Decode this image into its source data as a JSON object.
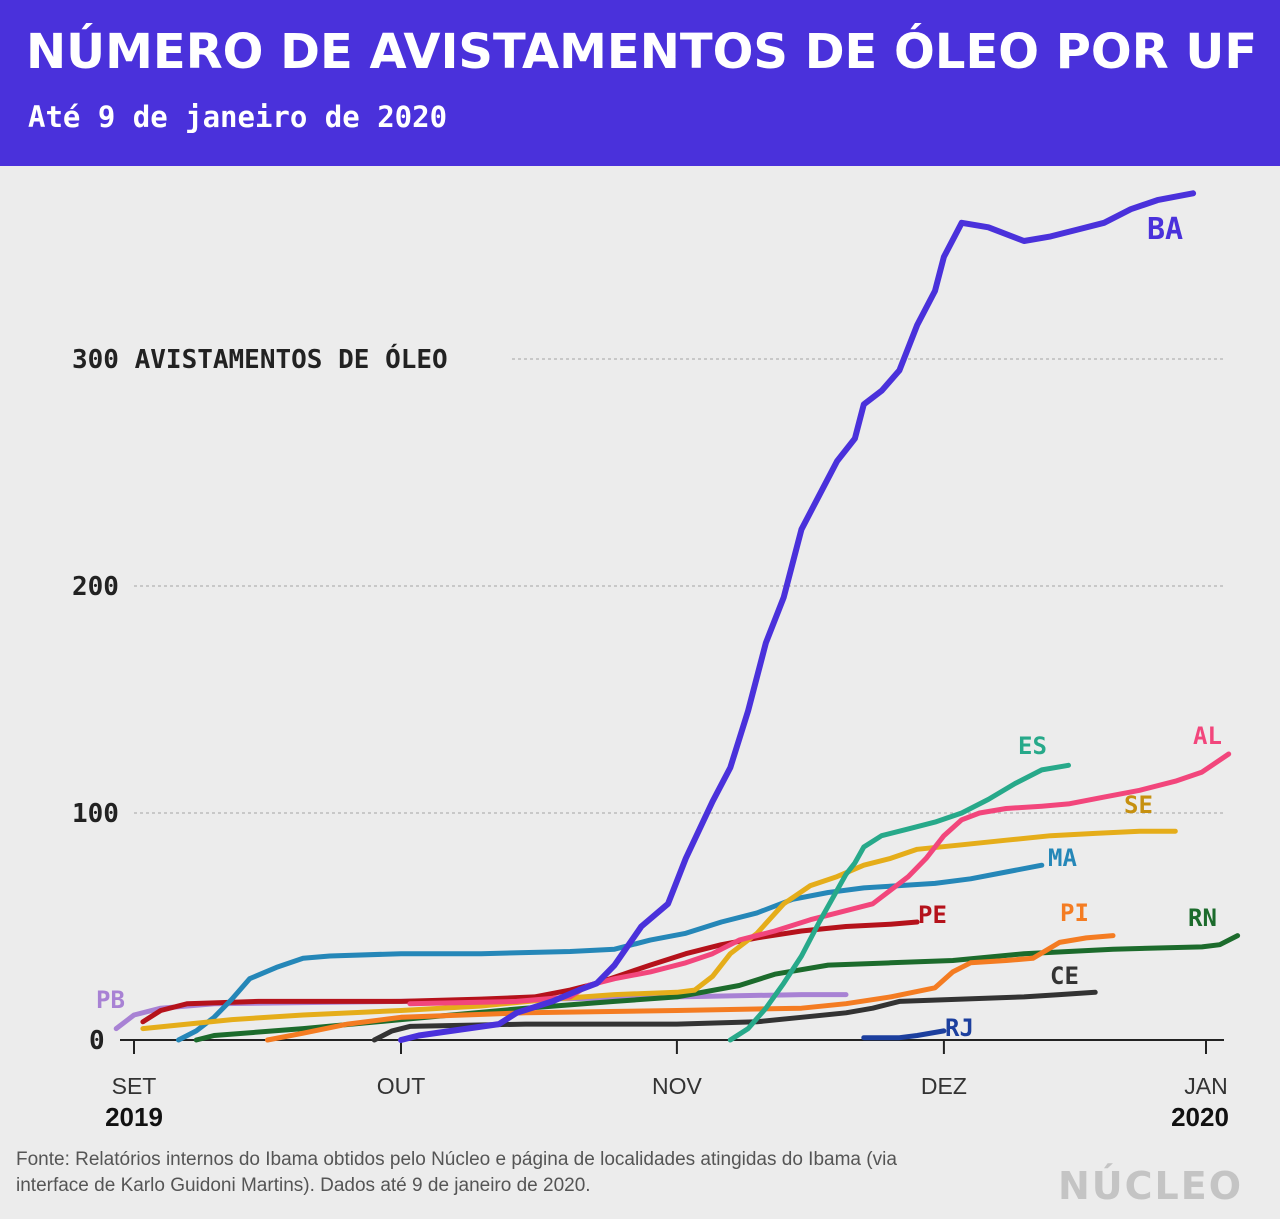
{
  "header": {
    "title": "NÚMERO DE AVISTAMENTOS DE ÓLEO POR UF",
    "subtitle": "Até 9 de janeiro de 2020"
  },
  "chart_data": {
    "type": "line",
    "title": "NÚMERO DE AVISTAMENTOS DE ÓLEO POR UF",
    "subtitle": "Até 9 de janeiro de 2020",
    "ylim": [
      0,
      380
    ],
    "xlim": [
      "2019-08-30",
      "2020-01-09"
    ],
    "grid": "horizontal dotted",
    "y_ticks": [
      {
        "value": 0,
        "label": "0"
      },
      {
        "value": 100,
        "label": "100"
      },
      {
        "value": 200,
        "label": "200"
      },
      {
        "value": 300,
        "label": "300 AVISTAMENTOS DE ÓLEO"
      }
    ],
    "x_ticks": [
      {
        "date": "2019-09-01",
        "label": "SET",
        "year": "2019"
      },
      {
        "date": "2019-10-01",
        "label": "OUT",
        "year": ""
      },
      {
        "date": "2019-11-01",
        "label": "NOV",
        "year": ""
      },
      {
        "date": "2019-12-01",
        "label": "DEZ",
        "year": ""
      },
      {
        "date": "2020-01-01",
        "label": "JAN",
        "year": "2020"
      }
    ],
    "series": [
      {
        "name": "BA",
        "color": "#4a31db",
        "points": [
          [
            "2019-10-01",
            0
          ],
          [
            "2019-10-03",
            2
          ],
          [
            "2019-10-12",
            7
          ],
          [
            "2019-10-14",
            12
          ],
          [
            "2019-10-18",
            17
          ],
          [
            "2019-10-21",
            22
          ],
          [
            "2019-10-23",
            25
          ],
          [
            "2019-10-25",
            33
          ],
          [
            "2019-10-28",
            50
          ],
          [
            "2019-10-31",
            60
          ],
          [
            "2019-11-02",
            80
          ],
          [
            "2019-11-05",
            105
          ],
          [
            "2019-11-07",
            120
          ],
          [
            "2019-11-09",
            145
          ],
          [
            "2019-11-11",
            175
          ],
          [
            "2019-11-13",
            195
          ],
          [
            "2019-11-15",
            225
          ],
          [
            "2019-11-17",
            240
          ],
          [
            "2019-11-19",
            255
          ],
          [
            "2019-11-21",
            265
          ],
          [
            "2019-11-22",
            280
          ],
          [
            "2019-11-24",
            286
          ],
          [
            "2019-11-26",
            295
          ],
          [
            "2019-11-28",
            315
          ],
          [
            "2019-11-30",
            330
          ],
          [
            "2019-12-01",
            345
          ],
          [
            "2019-12-03",
            360
          ],
          [
            "2019-12-06",
            358
          ],
          [
            "2019-12-10",
            352
          ],
          [
            "2019-12-13",
            354
          ],
          [
            "2019-12-16",
            357
          ],
          [
            "2019-12-19",
            360
          ],
          [
            "2019-12-22",
            366
          ],
          [
            "2019-12-25",
            370
          ],
          [
            "2019-12-29",
            373
          ]
        ]
      },
      {
        "name": "AL",
        "color": "#f2467c",
        "points": [
          [
            "2019-10-02",
            16
          ],
          [
            "2019-10-14",
            17
          ],
          [
            "2019-10-20",
            19
          ],
          [
            "2019-10-22",
            24
          ],
          [
            "2019-10-25",
            27
          ],
          [
            "2019-10-29",
            30
          ],
          [
            "2019-11-02",
            34
          ],
          [
            "2019-11-05",
            38
          ],
          [
            "2019-11-08",
            44
          ],
          [
            "2019-11-12",
            48
          ],
          [
            "2019-11-16",
            53
          ],
          [
            "2019-11-19",
            56
          ],
          [
            "2019-11-23",
            60
          ],
          [
            "2019-11-27",
            72
          ],
          [
            "2019-11-29",
            80
          ],
          [
            "2019-12-01",
            90
          ],
          [
            "2019-12-03",
            97
          ],
          [
            "2019-12-05",
            100
          ],
          [
            "2019-12-08",
            102
          ],
          [
            "2019-12-12",
            103
          ],
          [
            "2019-12-15",
            104
          ],
          [
            "2019-12-19",
            107
          ],
          [
            "2019-12-23",
            110
          ],
          [
            "2019-12-27",
            114
          ],
          [
            "2019-12-30",
            118
          ],
          [
            "2020-01-02",
            126
          ]
        ]
      },
      {
        "name": "ES",
        "color": "#27a98a",
        "points": [
          [
            "2019-11-07",
            0
          ],
          [
            "2019-11-09",
            5
          ],
          [
            "2019-11-11",
            14
          ],
          [
            "2019-11-13",
            25
          ],
          [
            "2019-11-15",
            37
          ],
          [
            "2019-11-17",
            52
          ],
          [
            "2019-11-19",
            66
          ],
          [
            "2019-11-20",
            73
          ],
          [
            "2019-11-21",
            78
          ],
          [
            "2019-11-22",
            85
          ],
          [
            "2019-11-24",
            90
          ],
          [
            "2019-11-27",
            93
          ],
          [
            "2019-11-30",
            96
          ],
          [
            "2019-12-03",
            100
          ],
          [
            "2019-12-06",
            106
          ],
          [
            "2019-12-09",
            113
          ],
          [
            "2019-12-12",
            119
          ],
          [
            "2019-12-15",
            121
          ]
        ]
      },
      {
        "name": "SE",
        "color": "#e5ad1a",
        "points": [
          [
            "2019-09-02",
            5
          ],
          [
            "2019-09-12",
            9
          ],
          [
            "2019-09-20",
            11
          ],
          [
            "2019-10-01",
            13
          ],
          [
            "2019-10-10",
            15
          ],
          [
            "2019-10-18",
            18
          ],
          [
            "2019-10-25",
            20
          ],
          [
            "2019-11-01",
            21
          ],
          [
            "2019-11-03",
            22
          ],
          [
            "2019-11-05",
            28
          ],
          [
            "2019-11-07",
            38
          ],
          [
            "2019-11-10",
            47
          ],
          [
            "2019-11-13",
            60
          ],
          [
            "2019-11-16",
            68
          ],
          [
            "2019-11-19",
            72
          ],
          [
            "2019-11-22",
            77
          ],
          [
            "2019-11-25",
            80
          ],
          [
            "2019-11-28",
            84
          ],
          [
            "2019-12-03",
            86
          ],
          [
            "2019-12-08",
            88
          ],
          [
            "2019-12-13",
            90
          ],
          [
            "2019-12-18",
            91
          ],
          [
            "2019-12-23",
            92
          ],
          [
            "2019-12-27",
            92
          ]
        ]
      },
      {
        "name": "MA",
        "color": "#2587b8",
        "points": [
          [
            "2019-09-06",
            0
          ],
          [
            "2019-09-08",
            4
          ],
          [
            "2019-09-10",
            10
          ],
          [
            "2019-09-12",
            18
          ],
          [
            "2019-09-14",
            27
          ],
          [
            "2019-09-17",
            32
          ],
          [
            "2019-09-20",
            36
          ],
          [
            "2019-09-23",
            37
          ],
          [
            "2019-10-01",
            38
          ],
          [
            "2019-10-10",
            38
          ],
          [
            "2019-10-20",
            39
          ],
          [
            "2019-10-25",
            40
          ],
          [
            "2019-10-29",
            44
          ],
          [
            "2019-11-02",
            47
          ],
          [
            "2019-11-06",
            52
          ],
          [
            "2019-11-10",
            56
          ],
          [
            "2019-11-14",
            62
          ],
          [
            "2019-11-18",
            65
          ],
          [
            "2019-11-22",
            67
          ],
          [
            "2019-11-26",
            68
          ],
          [
            "2019-11-30",
            69
          ],
          [
            "2019-12-04",
            71
          ],
          [
            "2019-12-08",
            74
          ],
          [
            "2019-12-12",
            77
          ]
        ]
      },
      {
        "name": "PE",
        "color": "#b5121b",
        "points": [
          [
            "2019-09-02",
            8
          ],
          [
            "2019-09-04",
            13
          ],
          [
            "2019-09-07",
            16
          ],
          [
            "2019-09-15",
            17
          ],
          [
            "2019-10-01",
            17
          ],
          [
            "2019-10-10",
            18
          ],
          [
            "2019-10-16",
            19
          ],
          [
            "2019-10-20",
            22
          ],
          [
            "2019-10-23",
            25
          ],
          [
            "2019-10-26",
            29
          ],
          [
            "2019-10-29",
            33
          ],
          [
            "2019-11-02",
            38
          ],
          [
            "2019-11-06",
            42
          ],
          [
            "2019-11-10",
            45
          ],
          [
            "2019-11-15",
            48
          ],
          [
            "2019-11-20",
            50
          ],
          [
            "2019-11-25",
            51
          ],
          [
            "2019-11-28",
            52
          ]
        ]
      },
      {
        "name": "PI",
        "color": "#f47c22",
        "points": [
          [
            "2019-09-16",
            0
          ],
          [
            "2019-09-20",
            3
          ],
          [
            "2019-09-25",
            7
          ],
          [
            "2019-10-01",
            10
          ],
          [
            "2019-10-15",
            12
          ],
          [
            "2019-11-01",
            13
          ],
          [
            "2019-11-15",
            14
          ],
          [
            "2019-11-20",
            16
          ],
          [
            "2019-11-25",
            19
          ],
          [
            "2019-11-30",
            23
          ],
          [
            "2019-12-02",
            30
          ],
          [
            "2019-12-04",
            34
          ],
          [
            "2019-12-08",
            35
          ],
          [
            "2019-12-11",
            36
          ],
          [
            "2019-12-14",
            43
          ],
          [
            "2019-12-17",
            45
          ],
          [
            "2019-12-20",
            46
          ]
        ]
      },
      {
        "name": "RN",
        "color": "#1c6b2c",
        "points": [
          [
            "2019-09-08",
            0
          ],
          [
            "2019-09-10",
            2
          ],
          [
            "2019-09-20",
            5
          ],
          [
            "2019-10-01",
            9
          ],
          [
            "2019-10-15",
            14
          ],
          [
            "2019-10-25",
            17
          ],
          [
            "2019-11-01",
            19
          ],
          [
            "2019-11-08",
            24
          ],
          [
            "2019-11-12",
            29
          ],
          [
            "2019-11-18",
            33
          ],
          [
            "2019-11-25",
            34
          ],
          [
            "2019-12-02",
            35
          ],
          [
            "2019-12-10",
            38
          ],
          [
            "2019-12-20",
            40
          ],
          [
            "2019-12-30",
            41
          ],
          [
            "2020-01-01",
            42
          ],
          [
            "2020-01-03",
            46
          ]
        ]
      },
      {
        "name": "CE",
        "color": "#333333",
        "points": [
          [
            "2019-09-28",
            0
          ],
          [
            "2019-09-30",
            4
          ],
          [
            "2019-10-02",
            6
          ],
          [
            "2019-10-15",
            7
          ],
          [
            "2019-11-01",
            7
          ],
          [
            "2019-11-10",
            8
          ],
          [
            "2019-11-15",
            10
          ],
          [
            "2019-11-20",
            12
          ],
          [
            "2019-11-23",
            14
          ],
          [
            "2019-11-26",
            17
          ],
          [
            "2019-12-03",
            18
          ],
          [
            "2019-12-10",
            19
          ],
          [
            "2019-12-14",
            20
          ],
          [
            "2019-12-18",
            21
          ]
        ]
      },
      {
        "name": "PB",
        "color": "#a882d4",
        "points": [
          [
            "2019-08-30",
            5
          ],
          [
            "2019-09-01",
            11
          ],
          [
            "2019-09-04",
            14
          ],
          [
            "2019-09-10",
            16
          ],
          [
            "2019-10-01",
            17
          ],
          [
            "2019-11-01",
            19
          ],
          [
            "2019-11-15",
            20
          ],
          [
            "2019-11-20",
            20
          ]
        ]
      },
      {
        "name": "RJ",
        "color": "#1c3f9e",
        "points": [
          [
            "2019-11-22",
            1
          ],
          [
            "2019-11-26",
            1
          ],
          [
            "2019-11-28",
            2
          ],
          [
            "2019-12-01",
            4
          ]
        ]
      }
    ],
    "labels": [
      {
        "name": "BA",
        "text": "BA",
        "color": "#4a31db"
      },
      {
        "name": "ES",
        "text": "ES",
        "color": "#27a98a"
      },
      {
        "name": "AL",
        "text": "AL",
        "color": "#f2467c"
      },
      {
        "name": "SE",
        "text": "SE",
        "color": "#c69010"
      },
      {
        "name": "MA",
        "text": "MA",
        "color": "#2587b8"
      },
      {
        "name": "PE",
        "text": "PE",
        "color": "#b5121b"
      },
      {
        "name": "PI",
        "text": "PI",
        "color": "#f47c22"
      },
      {
        "name": "RN",
        "text": "RN",
        "color": "#1c6b2c"
      },
      {
        "name": "CE",
        "text": "CE",
        "color": "#333333"
      },
      {
        "name": "PB",
        "text": "PB",
        "color": "#a882d4"
      },
      {
        "name": "RJ",
        "text": "RJ",
        "color": "#1c3f9e"
      }
    ]
  },
  "footer": {
    "source": "Fonte: Relatórios internos do Ibama obtidos pelo Núcleo e página de localidades atingidas do Ibama (via interface de Karlo Guidoni Martins). Dados até 9 de janeiro de 2020.",
    "logo": "NÚCLEO"
  }
}
